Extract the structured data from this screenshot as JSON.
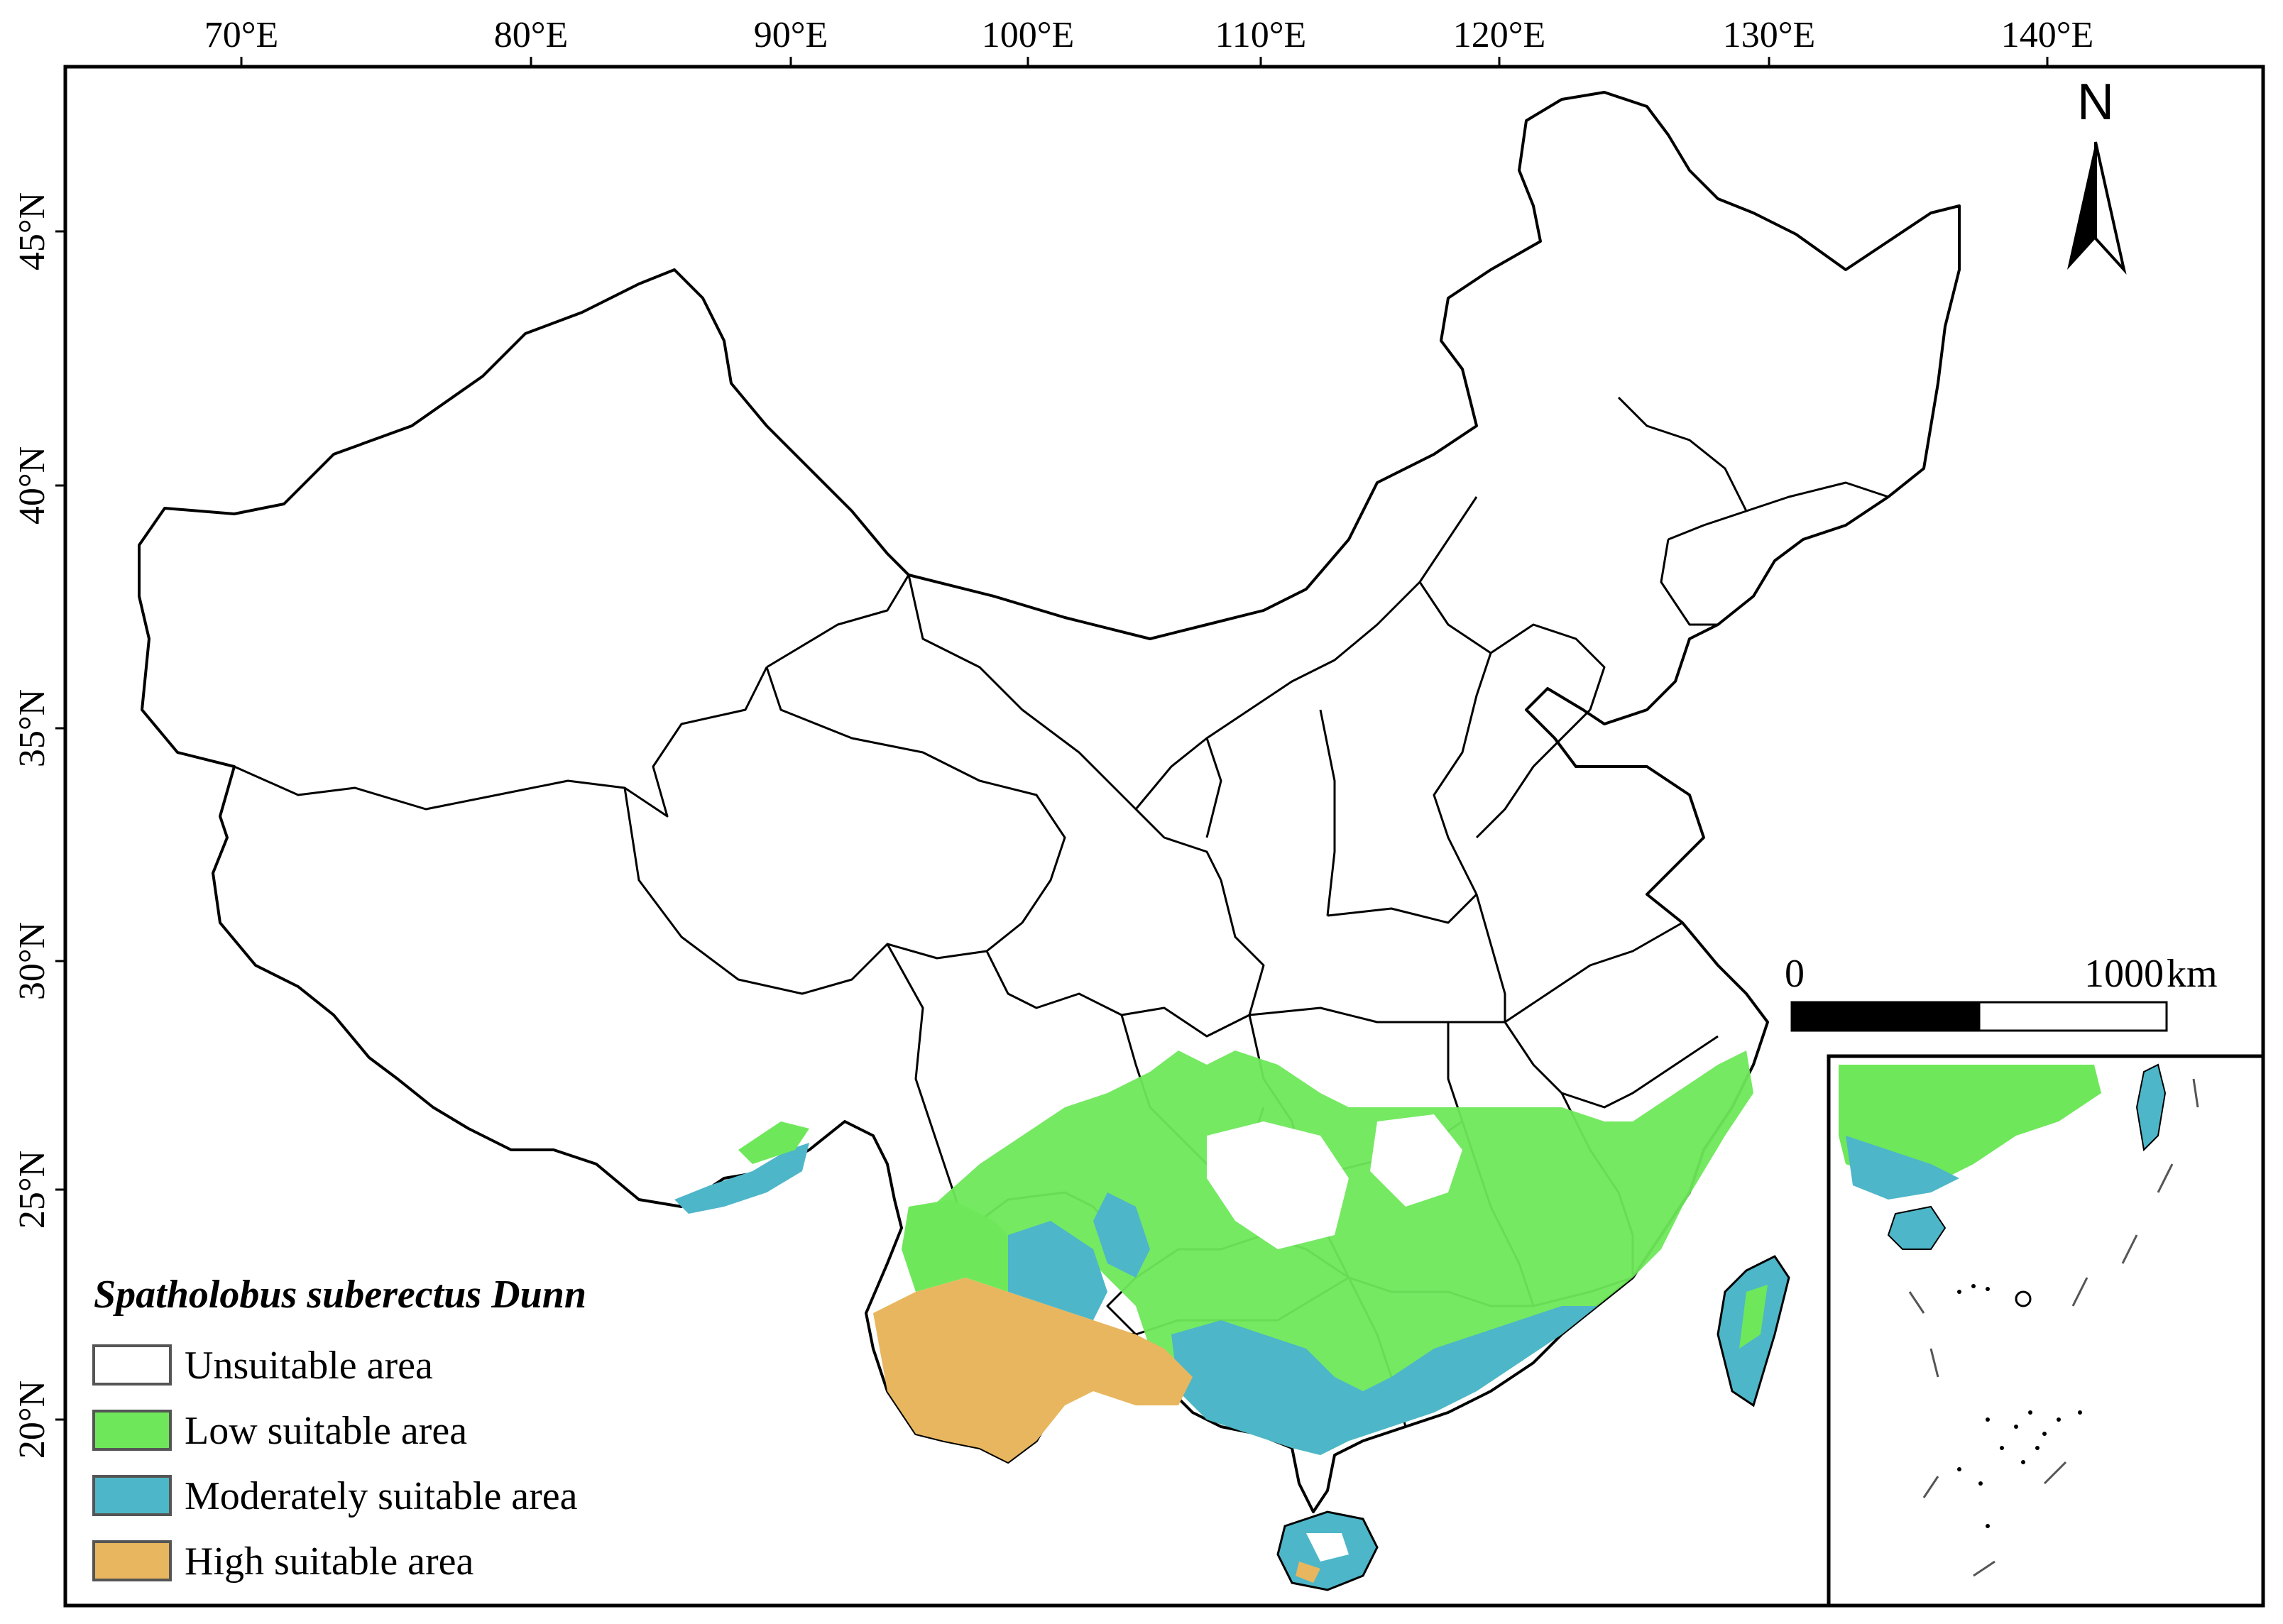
{
  "axes": {
    "lon_labels": [
      "70°E",
      "80°E",
      "90°E",
      "100°E",
      "110°E",
      "120°E",
      "130°E",
      "140°E"
    ],
    "lat_labels": [
      "45°N",
      "40°N",
      "35°N",
      "30°N",
      "25°N",
      "20°N"
    ]
  },
  "north_arrow": {
    "label": "N",
    "icon": "north-arrow-icon"
  },
  "scale_bar": {
    "start_label": "0",
    "end_label": "1000",
    "unit": "km"
  },
  "legend": {
    "title": "Spatholobus suberectus Dunn",
    "items": [
      {
        "label": "Unsuitable area",
        "color": "#ffffff"
      },
      {
        "label": "Low suitable area",
        "color": "#6ee85a"
      },
      {
        "label": "Moderately suitable area",
        "color": "#4db6c8"
      },
      {
        "label": "High suitable area",
        "color": "#e8b65e"
      }
    ]
  },
  "colors": {
    "boundary": "#000000",
    "frame": "#000000",
    "low": "#6ee85a",
    "moderate": "#4db6c8",
    "high": "#e8b65e"
  }
}
